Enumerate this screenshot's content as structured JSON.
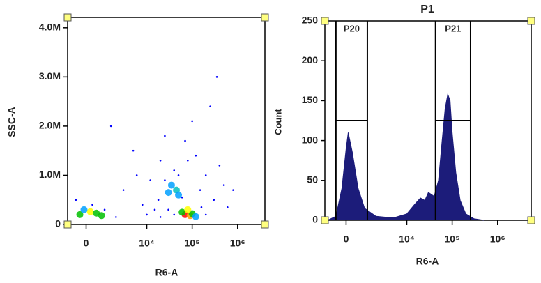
{
  "chart_data": [
    {
      "type": "scatter",
      "xlabel": "R6-A",
      "ylabel": "SSC-A",
      "xscale": "biexponential",
      "xlim": [
        -1000,
        4000000
      ],
      "ylim": [
        0,
        4210000
      ],
      "xticks": [
        0,
        {
          "value": 10000,
          "label": "10⁴"
        },
        {
          "value": 100000,
          "label": "10⁵"
        },
        {
          "value": 1000000,
          "label": "10⁶"
        }
      ],
      "yticks": [
        0,
        {
          "value": 1000000,
          "label": "1.0M"
        },
        {
          "value": 2000000,
          "label": "2.0M"
        },
        {
          "value": 3000000,
          "label": "3.0M"
        },
        {
          "value": 4000000,
          "label": "4.0M"
        }
      ],
      "x": [
        -300,
        200,
        500,
        -100,
        800,
        300,
        70000,
        90000,
        60000,
        100000,
        80000,
        120000,
        30000,
        45000,
        50000,
        35000,
        60000,
        25000,
        40000,
        3000,
        5000,
        8000,
        12000,
        15000,
        20000,
        18000,
        25000,
        30000,
        150000,
        200000,
        300000,
        500000,
        400000,
        250000,
        100000,
        1500,
        6000,
        70000,
        120000,
        350000,
        10000,
        20000,
        40000,
        2000,
        1000,
        -500,
        600000,
        800000,
        50000,
        80000,
        160000,
        200000
      ],
      "y": [
        200000,
        260000,
        230000,
        300000,
        180000,
        400000,
        200000,
        180000,
        250000,
        220000,
        300000,
        160000,
        650000,
        700000,
        600000,
        800000,
        550000,
        900000,
        1100000,
        700000,
        1500000,
        400000,
        900000,
        300000,
        1300000,
        500000,
        1800000,
        300000,
        700000,
        1000000,
        500000,
        800000,
        1200000,
        2400000,
        2100000,
        2000000,
        1000000,
        1700000,
        1400000,
        3000000,
        200000,
        150000,
        200000,
        150000,
        300000,
        500000,
        350000,
        700000,
        1000000,
        1300000,
        350000,
        200000
      ],
      "colors": [
        "#00c000",
        "#ffff00",
        "#00c000",
        "#00a0ff",
        "#00c000",
        "#0000ff",
        "#ff0000",
        "#ffa000",
        "#00c000",
        "#00c000",
        "#ffff00",
        "#00a0ff",
        "#00a0ff",
        "#00c0c0",
        "#00a0ff",
        "#00a0ff",
        "#0000ff",
        "#0000ff",
        "#0000ff",
        "#0000ff",
        "#0000ff",
        "#0000ff",
        "#0000ff",
        "#0000ff",
        "#0000ff",
        "#0000ff",
        "#0000ff",
        "#0000ff",
        "#0000ff",
        "#0000ff",
        "#0000ff",
        "#0000ff",
        "#0000ff",
        "#0000ff",
        "#0000ff",
        "#0000ff",
        "#0000ff",
        "#0000ff",
        "#0000ff",
        "#0000ff",
        "#0000ff",
        "#0000ff",
        "#0000ff",
        "#0000ff",
        "#0000ff",
        "#0000ff",
        "#0000ff",
        "#0000ff",
        "#0000ff",
        "#0000ff",
        "#0000ff",
        "#0000ff"
      ]
    },
    {
      "type": "histogram",
      "title": "P1",
      "xlabel": "R6-A",
      "ylabel": "Count",
      "xscale": "biexponential",
      "xlim": [
        -1200,
        5500000
      ],
      "ylim": [
        0,
        250
      ],
      "yticks": [
        0,
        50,
        100,
        150,
        200,
        250
      ],
      "xticks": [
        0,
        {
          "value": 10000,
          "label": "10⁴"
        },
        {
          "value": 100000,
          "label": "10⁵"
        },
        {
          "value": 1000000,
          "label": "10⁶"
        }
      ],
      "color": "#1c1c7a",
      "background": "#ee9a9a",
      "x": [
        -1000,
        -500,
        -200,
        0,
        100,
        300,
        600,
        1000,
        2000,
        5000,
        10000,
        15000,
        20000,
        25000,
        30000,
        40000,
        50000,
        60000,
        70000,
        80000,
        90000,
        100000,
        120000,
        150000,
        200000,
        300000,
        500000
      ],
      "values": [
        0,
        5,
        40,
        90,
        110,
        85,
        40,
        15,
        5,
        3,
        8,
        20,
        28,
        25,
        35,
        30,
        50,
        100,
        140,
        158,
        150,
        110,
        60,
        25,
        8,
        2,
        0
      ],
      "gates": [
        {
          "name": "P20",
          "x": [
            -500,
            1200
          ],
          "y": 125
        },
        {
          "name": "P21",
          "x": [
            43000,
            254000
          ],
          "y": 125
        }
      ]
    }
  ]
}
